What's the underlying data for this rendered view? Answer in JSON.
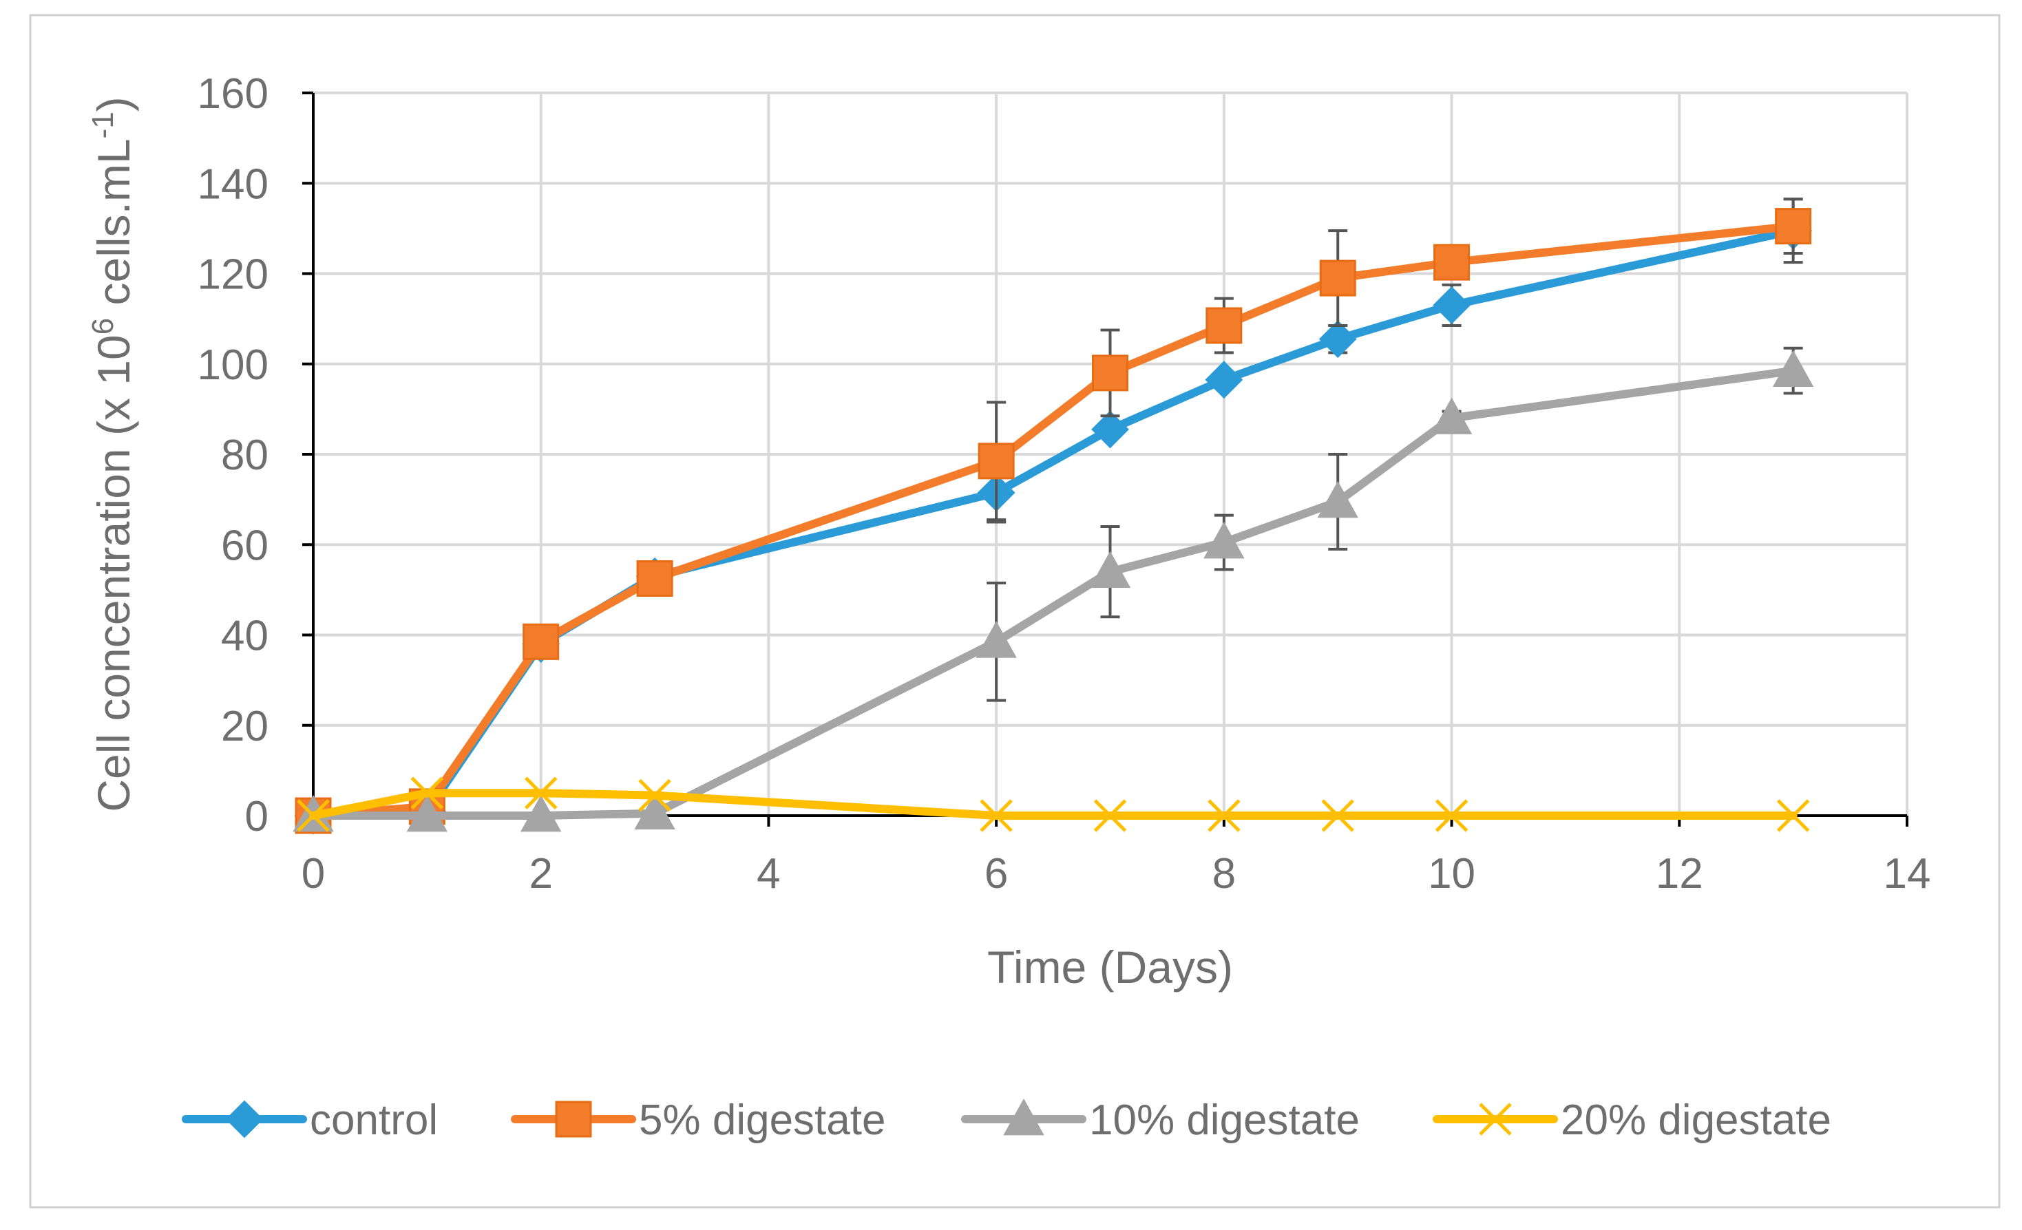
{
  "chart_data": {
    "type": "line",
    "title": "",
    "xlabel": "Time (Days)",
    "ylabel_parts": {
      "main": "Cell concentration (x 10",
      "sup1": "6",
      "mid": " cells.mL",
      "sup2": "-1",
      "end": ")"
    },
    "xlim": [
      0,
      14
    ],
    "ylim": [
      0,
      160
    ],
    "xticks": [
      "0",
      "2",
      "4",
      "6",
      "8",
      "10",
      "12",
      "14"
    ],
    "yticks": [
      "0",
      "20",
      "40",
      "60",
      "80",
      "100",
      "120",
      "140",
      "160"
    ],
    "grid": true,
    "legend_position": "bottom",
    "series": [
      {
        "name": "control",
        "color": "#2b9bd8",
        "marker": "diamond",
        "x": [
          0,
          1,
          2,
          3,
          6,
          7,
          8,
          9,
          10,
          13
        ],
        "y": [
          0,
          1,
          38,
          53,
          71.5,
          85.5,
          96.5,
          105.5,
          113,
          129.5
        ],
        "err": [
          0,
          0,
          0,
          0,
          6.5,
          0,
          0,
          3,
          4.5,
          7
        ]
      },
      {
        "name": "5% digestate",
        "color": "#f27c2a",
        "marker": "square",
        "x": [
          0,
          1,
          2,
          3,
          6,
          7,
          8,
          9,
          10,
          13
        ],
        "y": [
          0,
          2,
          38.5,
          52.5,
          78.5,
          98,
          108.5,
          119,
          122.5,
          130.5
        ],
        "err": [
          0,
          0,
          0,
          0,
          13,
          9.5,
          6,
          10.5,
          0,
          6
        ]
      },
      {
        "name": "10% digestate",
        "color": "#a5a5a5",
        "marker": "triangle",
        "x": [
          0,
          1,
          2,
          3,
          6,
          7,
          8,
          9,
          10,
          13
        ],
        "y": [
          0,
          0,
          0,
          0.5,
          38.5,
          54,
          60.5,
          69.5,
          88,
          98.5
        ],
        "err": [
          0,
          0,
          0,
          0,
          13,
          10,
          6,
          10.5,
          1.5,
          5
        ]
      },
      {
        "name": "20% digestate",
        "color": "#ffbf00",
        "marker": "x",
        "x": [
          0,
          1,
          2,
          3,
          6,
          7,
          8,
          9,
          10,
          13
        ],
        "y": [
          0,
          5,
          5,
          4.5,
          0,
          0,
          0,
          0,
          0,
          0
        ],
        "err": [
          0,
          0,
          0,
          0,
          0,
          0,
          0,
          0,
          0,
          0
        ]
      }
    ]
  }
}
